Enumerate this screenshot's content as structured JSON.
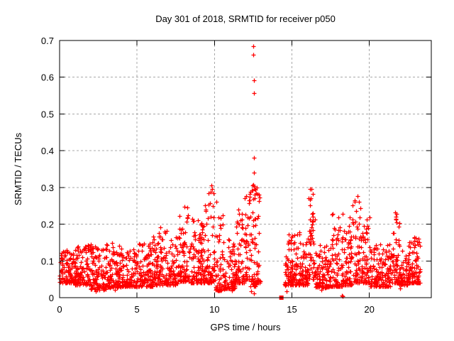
{
  "header": {
    "title": "Day 301 of 2018, SRMTID for receiver p050"
  },
  "chart_data": {
    "type": "scatter",
    "title": "Day 301 of 2018, SRMTID for receiver p050",
    "xlabel": "GPS time / hours",
    "ylabel": "SRMTID / TECUs",
    "xlim": [
      0,
      24
    ],
    "ylim": [
      0,
      0.7
    ],
    "xticks": [
      0,
      5,
      10,
      15,
      20
    ],
    "yticks": [
      0,
      0.1,
      0.2,
      0.3,
      0.4,
      0.5,
      0.6,
      0.7
    ],
    "grid": true,
    "grid_style": "dashed",
    "legend": "none",
    "marker": "plus",
    "marker_color": "#ff0000",
    "grid_color": "#a8a8a8",
    "border_color": "#000000",
    "background": "#ffffff",
    "data_gap_hours": [
      12.95,
      14.5
    ],
    "band_profile_fields": [
      "x_start",
      "x_end",
      "n_points",
      "y_min",
      "y_max",
      "low_bias_exponent"
    ],
    "band_profile": [
      [
        0.0,
        1.0,
        110,
        0.04,
        0.13,
        2.0
      ],
      [
        1.0,
        2.0,
        110,
        0.035,
        0.145,
        2.0
      ],
      [
        2.0,
        3.0,
        110,
        0.022,
        0.15,
        2.0
      ],
      [
        3.0,
        4.0,
        110,
        0.028,
        0.15,
        2.0
      ],
      [
        4.0,
        5.0,
        110,
        0.03,
        0.135,
        2.0
      ],
      [
        5.0,
        6.0,
        110,
        0.03,
        0.15,
        2.0
      ],
      [
        6.0,
        7.0,
        110,
        0.035,
        0.19,
        2.4
      ],
      [
        7.0,
        7.6,
        65,
        0.035,
        0.165,
        2.2
      ],
      [
        7.6,
        8.35,
        80,
        0.045,
        0.25,
        2.6
      ],
      [
        8.35,
        9.4,
        115,
        0.04,
        0.215,
        2.4
      ],
      [
        9.4,
        10.05,
        70,
        0.04,
        0.3,
        2.6
      ],
      [
        10.05,
        10.65,
        65,
        0.02,
        0.23,
        2.8
      ],
      [
        10.65,
        11.3,
        70,
        0.025,
        0.165,
        2.2
      ],
      [
        11.3,
        12.0,
        75,
        0.04,
        0.24,
        2.4
      ],
      [
        12.0,
        12.25,
        28,
        0.05,
        0.28,
        2.2
      ],
      [
        12.25,
        12.65,
        48,
        0.03,
        0.315,
        1.6
      ],
      [
        12.65,
        12.95,
        33,
        0.04,
        0.3,
        2.4
      ],
      [
        14.5,
        15.5,
        110,
        0.035,
        0.185,
        2.2
      ],
      [
        15.5,
        16.05,
        60,
        0.035,
        0.155,
        2.0
      ],
      [
        16.05,
        16.5,
        52,
        0.05,
        0.3,
        1.9
      ],
      [
        16.5,
        17.5,
        105,
        0.028,
        0.145,
        2.0
      ],
      [
        17.5,
        18.3,
        85,
        0.03,
        0.23,
        2.6
      ],
      [
        18.3,
        19.0,
        75,
        0.035,
        0.22,
        2.5
      ],
      [
        19.0,
        19.6,
        62,
        0.04,
        0.28,
        2.3
      ],
      [
        19.6,
        20.05,
        48,
        0.04,
        0.23,
        2.6
      ],
      [
        20.05,
        21.4,
        140,
        0.03,
        0.15,
        2.1
      ],
      [
        21.4,
        21.95,
        58,
        0.04,
        0.235,
        2.6
      ],
      [
        21.95,
        22.45,
        55,
        0.035,
        0.135,
        2.0
      ],
      [
        22.45,
        23.3,
        105,
        0.04,
        0.165,
        2.2
      ]
    ],
    "outliers": [
      [
        12.52,
        0.685
      ],
      [
        12.51,
        0.661
      ],
      [
        12.55,
        0.592
      ],
      [
        12.54,
        0.557
      ],
      [
        12.55,
        0.381
      ],
      [
        12.56,
        0.341
      ],
      [
        12.5,
        0.308
      ],
      [
        12.55,
        0.303
      ],
      [
        12.58,
        0.296
      ],
      [
        12.74,
        0.3
      ],
      [
        12.68,
        0.284
      ],
      [
        9.82,
        0.306
      ],
      [
        9.86,
        0.296
      ],
      [
        9.62,
        0.284
      ],
      [
        10.12,
        0.262
      ],
      [
        11.95,
        0.27
      ],
      [
        12.05,
        0.277
      ],
      [
        11.52,
        0.24
      ],
      [
        16.28,
        0.295
      ],
      [
        16.33,
        0.282
      ],
      [
        16.22,
        0.27
      ],
      [
        19.25,
        0.276
      ],
      [
        19.33,
        0.262
      ],
      [
        18.92,
        0.252
      ],
      [
        17.62,
        0.228
      ],
      [
        21.68,
        0.233
      ],
      [
        21.72,
        0.22
      ],
      [
        8.08,
        0.247
      ],
      [
        6.52,
        0.192
      ],
      [
        14.57,
        0.033
      ],
      [
        14.66,
        0.017
      ],
      [
        18.22,
        0.006
      ],
      [
        18.26,
        0.004
      ],
      [
        2.33,
        0.018
      ],
      [
        3.58,
        0.022
      ],
      [
        10.35,
        0.022
      ],
      [
        11.12,
        0.02
      ],
      [
        12.38,
        0.018
      ],
      [
        12.56,
        0.012
      ],
      [
        16.92,
        0.022
      ],
      [
        22.0,
        0.025
      ]
    ],
    "special_markers": [
      {
        "shape": "filled-square",
        "x": 14.32,
        "y": 0.0
      }
    ]
  }
}
